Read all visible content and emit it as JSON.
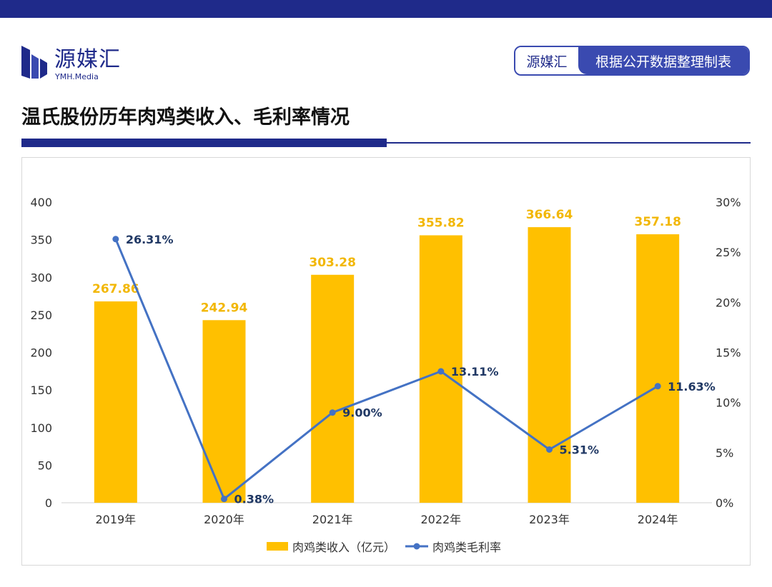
{
  "header": {
    "logo_cn": "源媒汇",
    "logo_en": "YMH.Media",
    "source_brand": "源媒汇",
    "source_desc": "根据公开数据整理制表"
  },
  "colors": {
    "navy": "#1f2a8a",
    "bar": "#ffc000",
    "line": "#4472c4",
    "bar_label": "#f2b705",
    "line_label": "#203864"
  },
  "chart_data": {
    "type": "bar",
    "title": "温氏股份历年肉鸡类收入、毛利率情况",
    "categories": [
      "2019年",
      "2020年",
      "2021年",
      "2022年",
      "2023年",
      "2024年"
    ],
    "series": [
      {
        "name": "肉鸡类收入（亿元）",
        "type": "bar",
        "axis": "left",
        "values": [
          267.86,
          242.94,
          303.28,
          355.82,
          366.64,
          357.18
        ],
        "labels": [
          "267.86",
          "242.94",
          "303.28",
          "355.82",
          "366.64",
          "357.18"
        ]
      },
      {
        "name": "肉鸡类毛利率",
        "type": "line",
        "axis": "right",
        "values": [
          26.31,
          0.38,
          9.0,
          13.11,
          5.31,
          11.63
        ],
        "labels": [
          "26.31%",
          "0.38%",
          "9.00%",
          "13.11%",
          "5.31%",
          "11.63%"
        ]
      }
    ],
    "y_left": {
      "min": 0,
      "max": 400,
      "ticks": [
        "0",
        "50",
        "100",
        "150",
        "200",
        "250",
        "300",
        "350",
        "400"
      ]
    },
    "y_right": {
      "min": 0,
      "max": 30,
      "ticks": [
        "0%",
        "5%",
        "10%",
        "15%",
        "20%",
        "25%",
        "30%"
      ]
    },
    "grid": false,
    "legend": "bottom"
  }
}
